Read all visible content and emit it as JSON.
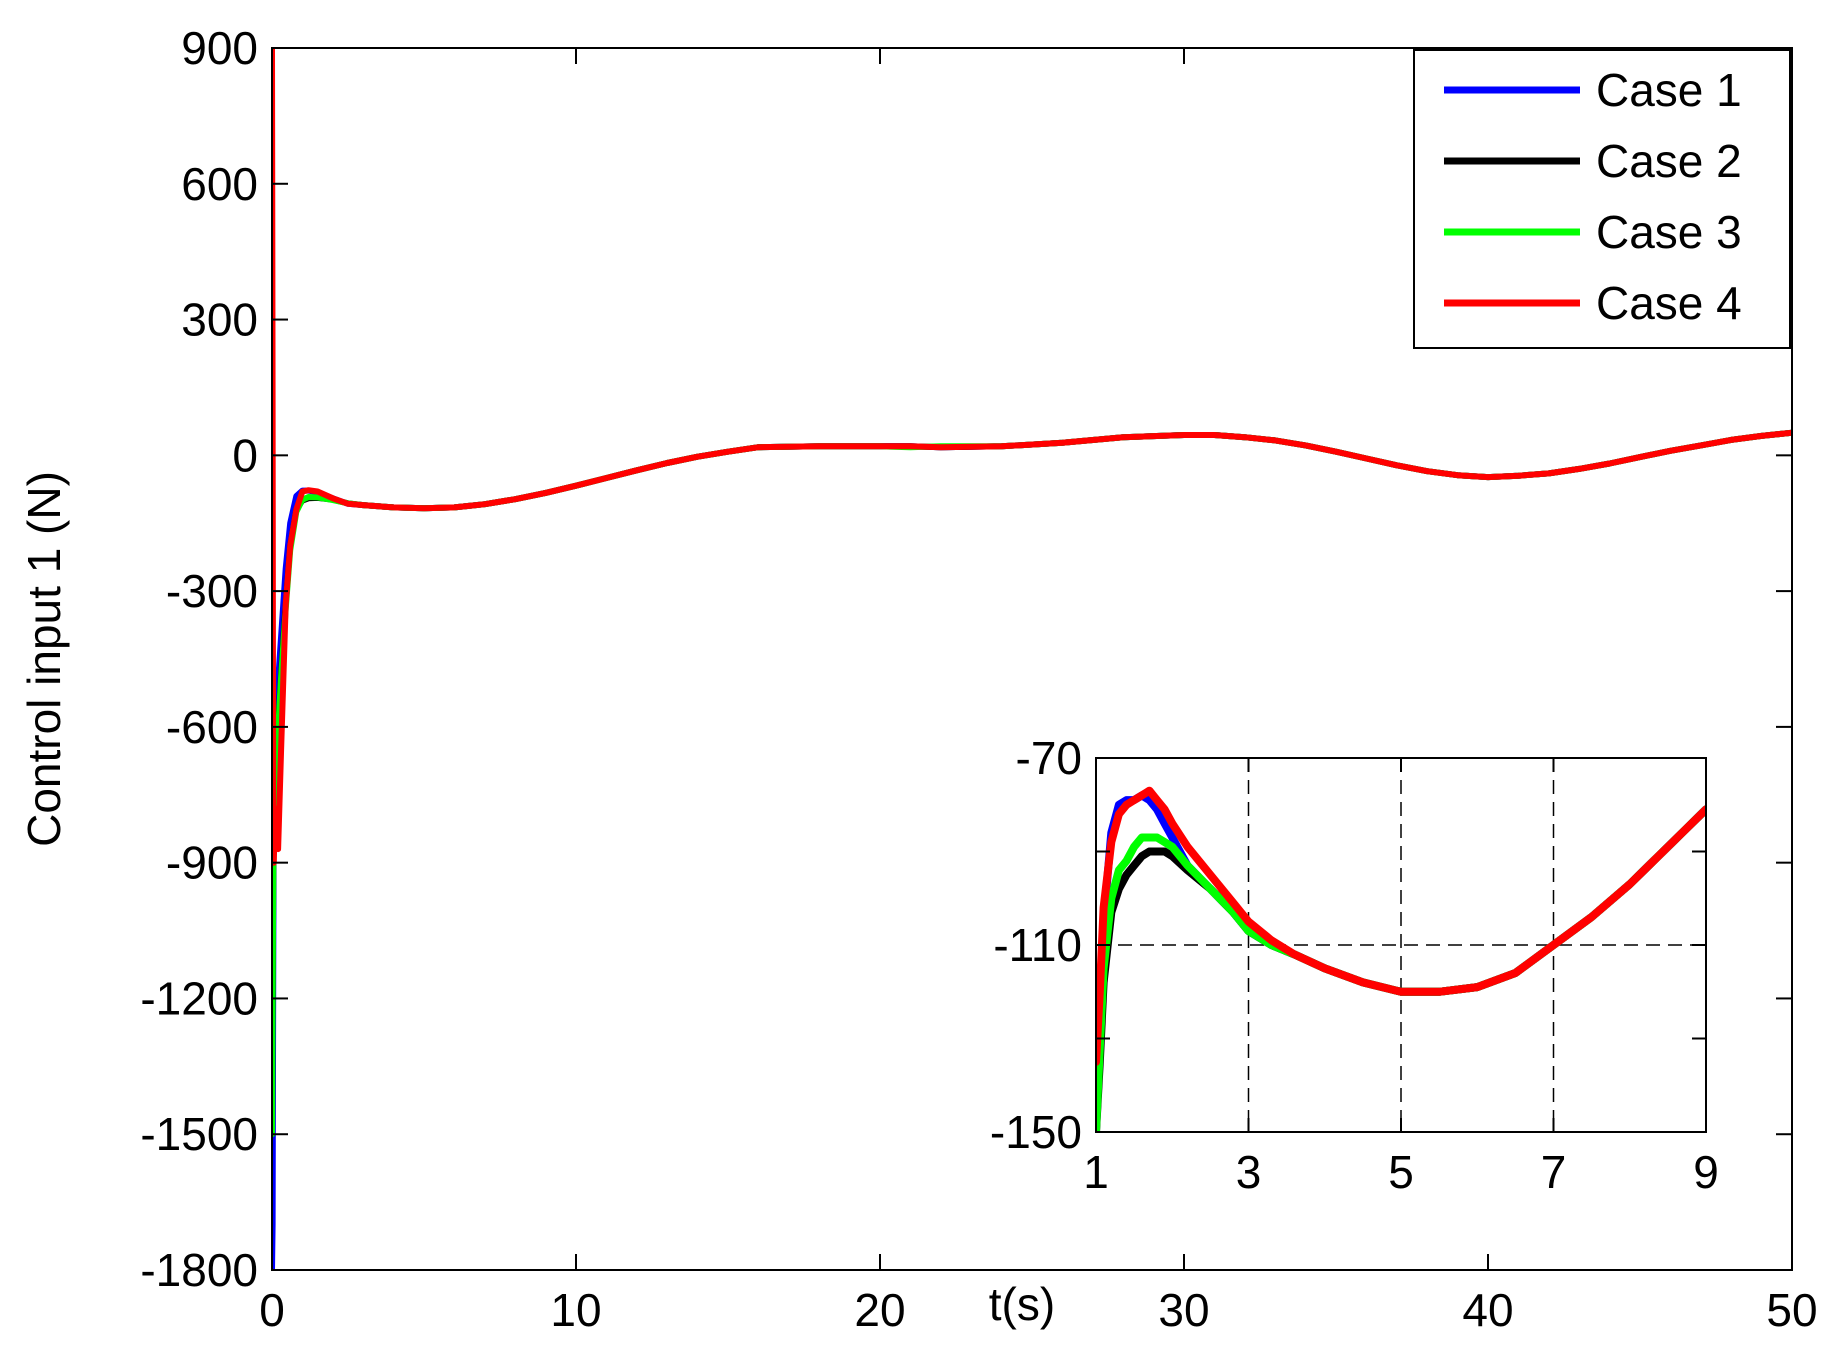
{
  "chart_data": [
    {
      "type": "line",
      "xlabel": "t(s)",
      "ylabel": "Control input 1 (N)",
      "xlim": [
        0,
        50
      ],
      "ylim": [
        -1800,
        900
      ],
      "xticks": [
        0,
        10,
        20,
        30,
        40,
        50
      ],
      "yticks": [
        900,
        600,
        300,
        0,
        -300,
        -600,
        -900,
        -1200,
        -1500,
        -1800
      ],
      "grid": false,
      "legend_position": "top-right",
      "series": [
        {
          "name": "Case 1",
          "color": "#0000ff",
          "x": [
            0,
            0.02,
            0.05,
            0.1,
            0.2,
            0.3,
            0.45,
            0.6,
            0.8,
            1.0,
            1.2,
            1.5,
            2,
            2.5,
            3,
            4,
            5,
            6,
            7,
            8,
            9,
            10,
            11,
            12,
            13,
            14,
            15,
            16,
            18,
            20,
            21,
            22,
            24,
            26,
            28,
            30,
            31,
            32,
            33,
            34,
            35,
            36,
            37,
            38,
            39,
            40,
            41,
            42,
            43,
            44,
            45,
            46,
            47,
            48,
            49,
            50
          ],
          "y": [
            -1800,
            -1700,
            -900,
            -600,
            -500,
            -400,
            -250,
            -150,
            -90,
            -78,
            -78,
            -82,
            -95,
            -107,
            -110,
            -115,
            -117,
            -115,
            -108,
            -97,
            -83,
            -67,
            -50,
            -33,
            -17,
            -3,
            8,
            18,
            20,
            20,
            20,
            18,
            20,
            28,
            40,
            45,
            45,
            40,
            33,
            22,
            8,
            -7,
            -22,
            -35,
            -44,
            -48,
            -45,
            -40,
            -30,
            -18,
            -4,
            10,
            22,
            34,
            43,
            50
          ]
        },
        {
          "name": "Case 2",
          "color": "#000000",
          "x": [
            0,
            0.02,
            0.05,
            0.1,
            0.2,
            0.3,
            0.45,
            0.6,
            0.8,
            1.0,
            1.2,
            1.5,
            2,
            2.5,
            3,
            4,
            5,
            6,
            7,
            8,
            9,
            10,
            11,
            12,
            13,
            14,
            15,
            16,
            18,
            20,
            21,
            22,
            24,
            26,
            28,
            30,
            31,
            32,
            33,
            34,
            35,
            36,
            37,
            38,
            39,
            40,
            41,
            42,
            43,
            44,
            45,
            46,
            47,
            48,
            49,
            50
          ],
          "y": [
            -1500,
            -1250,
            -800,
            -700,
            -600,
            -480,
            -330,
            -200,
            -120,
            -100,
            -95,
            -94,
            -98,
            -106,
            -110,
            -115,
            -117,
            -115,
            -108,
            -97,
            -83,
            -67,
            -50,
            -33,
            -17,
            -3,
            8,
            18,
            20,
            20,
            20,
            18,
            20,
            28,
            40,
            45,
            45,
            40,
            33,
            22,
            8,
            -7,
            -22,
            -35,
            -44,
            -48,
            -45,
            -40,
            -30,
            -18,
            -4,
            10,
            22,
            34,
            43,
            50
          ]
        },
        {
          "name": "Case 3",
          "color": "#00ff00",
          "x": [
            0,
            0.02,
            0.05,
            0.1,
            0.2,
            0.3,
            0.45,
            0.6,
            0.8,
            1.0,
            1.2,
            1.5,
            2,
            2.5,
            3,
            4,
            5,
            6,
            7,
            8,
            9,
            10,
            11,
            12,
            13,
            14,
            15,
            16,
            18,
            20,
            21,
            22,
            24,
            26,
            28,
            30,
            31,
            32,
            33,
            34,
            35,
            36,
            37,
            38,
            39,
            40,
            41,
            42,
            43,
            44,
            45,
            46,
            47,
            48,
            49,
            50
          ],
          "y": [
            -1500,
            -1200,
            -820,
            -720,
            -610,
            -490,
            -340,
            -210,
            -125,
            -98,
            -92,
            -93,
            -99,
            -106,
            -110,
            -115,
            -117,
            -115,
            -108,
            -97,
            -83,
            -67,
            -50,
            -33,
            -17,
            -3,
            8,
            18,
            20,
            20,
            18,
            20,
            20,
            28,
            40,
            45,
            45,
            40,
            33,
            22,
            8,
            -7,
            -22,
            -35,
            -44,
            -48,
            -45,
            -40,
            -30,
            -18,
            -4,
            10,
            22,
            34,
            43,
            50
          ]
        },
        {
          "name": "Case 4",
          "color": "#ff0000",
          "x": [
            0,
            0.02,
            0.04,
            0.06,
            0.1,
            0.2,
            0.3,
            0.45,
            0.6,
            0.8,
            1.0,
            1.2,
            1.5,
            2,
            2.5,
            3,
            4,
            5,
            6,
            7,
            8,
            9,
            10,
            11,
            12,
            13,
            14,
            15,
            16,
            18,
            20,
            21,
            22,
            24,
            26,
            28,
            30,
            31,
            32,
            33,
            34,
            35,
            36,
            37,
            38,
            39,
            40,
            41,
            42,
            43,
            44,
            45,
            46,
            47,
            48,
            49,
            50
          ],
          "y": [
            900,
            100,
            -850,
            -900,
            -780,
            -870,
            -650,
            -330,
            -200,
            -120,
            -80,
            -77,
            -80,
            -95,
            -107,
            -110,
            -115,
            -117,
            -115,
            -108,
            -97,
            -83,
            -67,
            -50,
            -33,
            -17,
            -3,
            8,
            18,
            20,
            20,
            20,
            18,
            20,
            28,
            40,
            45,
            45,
            40,
            33,
            22,
            8,
            -7,
            -22,
            -35,
            -44,
            -48,
            -45,
            -40,
            -30,
            -18,
            -4,
            10,
            22,
            34,
            43,
            50
          ]
        }
      ]
    },
    {
      "type": "line",
      "xlim": [
        1,
        9
      ],
      "ylim": [
        -150,
        -70
      ],
      "xticks": [
        1,
        3,
        5,
        7,
        9
      ],
      "yticks": [
        -70,
        -110,
        -150
      ],
      "ytick_marks": [
        -70,
        -90,
        -110,
        -130,
        -150
      ],
      "grid": true,
      "grid_style": "dashed",
      "series": [
        {
          "name": "Case 1",
          "color": "#0000ff",
          "x": [
            1.0,
            1.05,
            1.1,
            1.2,
            1.3,
            1.4,
            1.5,
            1.6,
            1.7,
            1.8,
            1.9,
            2.0,
            2.2,
            2.5,
            2.8,
            3.0,
            3.3,
            3.6,
            4.0,
            4.5,
            5.0,
            5.5,
            6.0,
            6.5,
            7.0,
            7.5,
            8.0,
            8.5,
            9.0
          ],
          "y": [
            -140,
            -125,
            -105,
            -86,
            -80,
            -79,
            -79,
            -78,
            -79,
            -81,
            -84,
            -87,
            -93,
            -98,
            -103,
            -107,
            -110,
            -112,
            -115,
            -118,
            -120,
            -120,
            -119,
            -116,
            -110,
            -104,
            -97,
            -89,
            -81
          ]
        },
        {
          "name": "Case 2",
          "color": "#000000",
          "x": [
            1.0,
            1.05,
            1.1,
            1.2,
            1.3,
            1.4,
            1.5,
            1.6,
            1.7,
            1.8,
            1.9,
            2.0,
            2.2,
            2.5,
            2.8,
            3.0,
            3.3,
            3.6,
            4.0,
            4.5,
            5.0,
            5.5,
            6.0,
            6.5,
            7.0,
            7.5,
            8.0,
            8.5,
            9.0
          ],
          "y": [
            -150,
            -135,
            -118,
            -103,
            -98,
            -95,
            -93,
            -91,
            -90,
            -90,
            -90,
            -91,
            -94,
            -98,
            -103,
            -107,
            -110,
            -112,
            -115,
            -118,
            -120,
            -120,
            -119,
            -116,
            -110,
            -104,
            -97,
            -89,
            -81
          ]
        },
        {
          "name": "Case 3",
          "color": "#00ff00",
          "x": [
            1.0,
            1.05,
            1.1,
            1.2,
            1.3,
            1.4,
            1.5,
            1.6,
            1.7,
            1.8,
            1.9,
            2.0,
            2.2,
            2.5,
            2.8,
            3.0,
            3.3,
            3.6,
            4.0,
            4.5,
            5.0,
            5.5,
            6.0,
            6.5,
            7.0,
            7.5,
            8.0,
            8.5,
            9.0
          ],
          "y": [
            -150,
            -132,
            -115,
            -100,
            -94,
            -92,
            -89,
            -87,
            -87,
            -87,
            -88,
            -89,
            -93,
            -98,
            -103,
            -107,
            -110,
            -112,
            -115,
            -118,
            -120,
            -120,
            -119,
            -116,
            -110,
            -104,
            -97,
            -89,
            -81
          ]
        },
        {
          "name": "Case 4",
          "color": "#ff0000",
          "x": [
            1.0,
            1.05,
            1.1,
            1.2,
            1.3,
            1.4,
            1.5,
            1.6,
            1.7,
            1.8,
            1.9,
            2.0,
            2.2,
            2.5,
            2.8,
            3.0,
            3.3,
            3.6,
            4.0,
            4.5,
            5.0,
            5.5,
            6.0,
            6.5,
            7.0,
            7.5,
            8.0,
            8.5,
            9.0
          ],
          "y": [
            -135,
            -120,
            -102,
            -88,
            -82,
            -80,
            -79,
            -78,
            -77,
            -79,
            -81,
            -84,
            -89,
            -95,
            -101,
            -105,
            -109,
            -112,
            -115,
            -118,
            -120,
            -120,
            -119,
            -116,
            -110,
            -104,
            -97,
            -89,
            -81
          ]
        }
      ]
    }
  ]
}
